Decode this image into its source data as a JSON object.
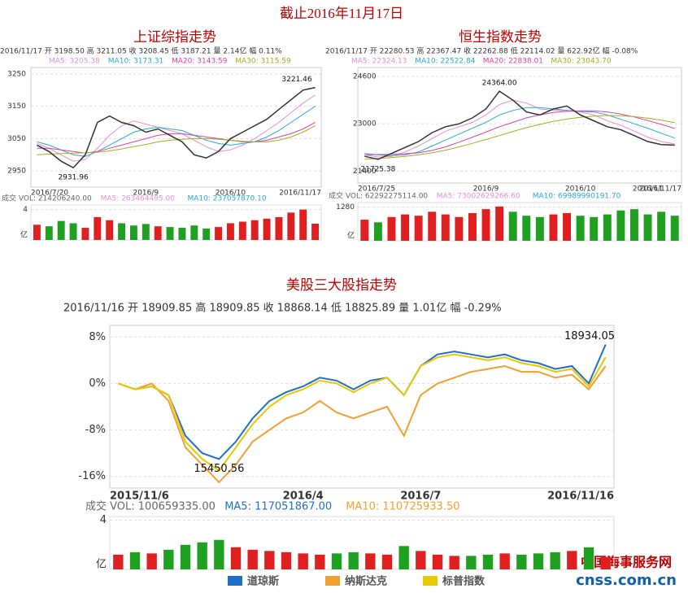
{
  "title": "截止2016年11月17日",
  "watermark": [
    "中国海事服务网",
    "cnss.com.cn"
  ],
  "chart_data": [
    {
      "type": "line",
      "title": "上证综指走势",
      "info": "2016/11/17 开 3198.50 高 3211.05 收 3208.45 低 3187.21 量 2.14亿 幅 0.11%",
      "categories": [
        "2016/7/20",
        null,
        null,
        null,
        null,
        null,
        null,
        null,
        null,
        "2016/9",
        null,
        null,
        null,
        null,
        null,
        null,
        "2016/10",
        null,
        null,
        null,
        null,
        null,
        null,
        "2016/11/17"
      ],
      "values": [
        3030,
        3010,
        2980,
        2960,
        3000,
        3100,
        3120,
        3100,
        3090,
        3070,
        3080,
        3060,
        3040,
        3000,
        2990,
        3010,
        3050,
        3070,
        3090,
        3110,
        3140,
        3170,
        3200,
        3208
      ],
      "color": "#333333",
      "series": [
        {
          "name": "MA5: 3205.38",
          "color": "#e58fd2",
          "values": [
            3035,
            3020,
            3000,
            2980,
            2985,
            3020,
            3060,
            3090,
            3105,
            3095,
            3085,
            3075,
            3065,
            3045,
            3025,
            3010,
            3015,
            3030,
            3050,
            3075,
            3100,
            3130,
            3160,
            3185
          ]
        },
        {
          "name": "MA10: 3173.31",
          "color": "#28a8d8",
          "values": [
            3040,
            3030,
            3015,
            3000,
            2995,
            3010,
            3030,
            3050,
            3070,
            3080,
            3085,
            3080,
            3075,
            3060,
            3045,
            3035,
            3030,
            3035,
            3040,
            3055,
            3075,
            3100,
            3125,
            3150
          ]
        },
        {
          "name": "MA20: 3143.59",
          "color": "#e0409c",
          "values": [
            3020,
            3020,
            3015,
            3010,
            3005,
            3010,
            3020,
            3030,
            3040,
            3050,
            3060,
            3065,
            3065,
            3060,
            3055,
            3050,
            3045,
            3040,
            3040,
            3045,
            3055,
            3065,
            3080,
            3100
          ]
        },
        {
          "name": "MA30: 3115.59",
          "color": "#a0b020",
          "values": [
            3000,
            3002,
            3004,
            3005,
            3006,
            3008,
            3012,
            3018,
            3025,
            3032,
            3040,
            3045,
            3048,
            3050,
            3050,
            3048,
            3045,
            3042,
            3040,
            3040,
            3045,
            3055,
            3070,
            3090
          ]
        }
      ],
      "ylim": [
        2900,
        3270
      ],
      "yticks": [
        2950,
        3050,
        3150,
        3250
      ],
      "annotations": [
        "3221.46",
        "2931.96"
      ],
      "volume": {
        "label": "成交 VOL: 214206240.00",
        "legend": [
          "MA5: 263464495.00",
          "MA10: 237057870.10"
        ],
        "values": [
          2.0,
          1.8,
          2.5,
          2.2,
          1.6,
          3.0,
          2.6,
          2.2,
          1.9,
          2.1,
          1.8,
          1.7,
          1.6,
          1.9,
          1.5,
          1.7,
          2.2,
          2.4,
          2.6,
          2.8,
          3.0,
          3.6,
          4.0,
          2.14
        ],
        "ylim": [
          0,
          4.6
        ],
        "yticks": [
          4
        ],
        "unit": "亿"
      }
    },
    {
      "type": "line",
      "title": "恒生指数走势",
      "info": "2016/11/17 开 22280.53 高 22367.47 收 22262.88 低 22114.02 量 622.92亿 幅 -0.08%",
      "categories": [
        "2016/7/25",
        null,
        null,
        null,
        null,
        null,
        null,
        null,
        null,
        "2016/9",
        null,
        null,
        null,
        null,
        null,
        null,
        "2016/10",
        null,
        null,
        null,
        null,
        "2016/11",
        null,
        "2016/11/17"
      ],
      "values": [
        21900,
        21800,
        22000,
        22200,
        22400,
        22700,
        22900,
        23000,
        23200,
        23500,
        24100,
        23800,
        23400,
        23300,
        23500,
        23600,
        23300,
        23100,
        22900,
        22800,
        22600,
        22400,
        22300,
        22280
      ],
      "color": "#333333",
      "series": [
        {
          "name": "MA5: 22324.13",
          "color": "#e58fd2",
          "values": [
            21950,
            21880,
            21900,
            22050,
            22250,
            22500,
            22750,
            22900,
            23050,
            23300,
            23650,
            23800,
            23700,
            23500,
            23450,
            23450,
            23400,
            23300,
            23100,
            22950,
            22750,
            22550,
            22400,
            22320
          ]
        },
        {
          "name": "MA10: 22522.84",
          "color": "#28a8d8",
          "values": [
            22000,
            21950,
            21920,
            21950,
            22050,
            22250,
            22450,
            22650,
            22850,
            23050,
            23300,
            23450,
            23550,
            23550,
            23500,
            23450,
            23420,
            23400,
            23300,
            23150,
            23000,
            22850,
            22680,
            22520
          ]
        },
        {
          "name": "MA20: 22838.01",
          "color": "#e0409c",
          "values": [
            21950,
            21960,
            21970,
            21990,
            22020,
            22100,
            22220,
            22380,
            22550,
            22720,
            22900,
            23050,
            23200,
            23300,
            23380,
            23420,
            23440,
            23440,
            23400,
            23330,
            23230,
            23110,
            22980,
            22840
          ]
        },
        {
          "name": "MA30: 23043.70",
          "color": "#a0b020",
          "values": [
            21800,
            21830,
            21860,
            21900,
            21950,
            22020,
            22110,
            22220,
            22340,
            22470,
            22600,
            22740,
            22870,
            22980,
            23080,
            23160,
            23220,
            23260,
            23280,
            23270,
            23240,
            23190,
            23120,
            23040
          ]
        }
      ],
      "ylim": [
        21000,
        24900
      ],
      "yticks": [
        21400,
        23000,
        24600
      ],
      "annotations": [
        "24364.00",
        "21725.38"
      ],
      "volume": {
        "label": "成交 VOL: 62292275114.00",
        "legend": [
          "MA5: 73002629266.60",
          "MA10: 69989990191.70"
        ],
        "values": [
          800,
          700,
          900,
          1000,
          950,
          1100,
          1000,
          900,
          1050,
          1200,
          1300,
          1100,
          950,
          900,
          1000,
          1050,
          950,
          900,
          1000,
          1150,
          1200,
          1000,
          1100,
          950
        ],
        "ylim": [
          0,
          1450
        ],
        "yticks": [
          1280
        ],
        "unit": "亿"
      }
    },
    {
      "type": "line",
      "title": "美股三大股指走势",
      "info": "2016/11/16 开 18909.85 高 18909.85 收 18868.14 低 18825.89 量 1.01亿 幅 -0.29%",
      "categories": [
        "2015/11/6",
        null,
        null,
        null,
        null,
        null,
        null,
        null,
        null,
        null,
        null,
        "2016/4",
        null,
        null,
        null,
        null,
        null,
        null,
        "2016/7",
        null,
        null,
        null,
        null,
        null,
        null,
        null,
        null,
        null,
        null,
        "2016/11/16"
      ],
      "series": [
        {
          "name": "道琼斯",
          "color": "#1f6fc5",
          "values": [
            0,
            -1,
            -0.5,
            -2,
            -9,
            -12,
            -13,
            -10,
            -6,
            -3,
            -1.5,
            -0.5,
            1,
            0.5,
            -1,
            0.5,
            1,
            -2,
            3,
            5,
            5.5,
            5,
            4.5,
            5,
            4,
            3.5,
            2.5,
            3,
            0,
            6.7
          ]
        },
        {
          "name": "纳斯达克",
          "color": "#f0a030",
          "values": [
            0,
            -1,
            0,
            -3,
            -11,
            -14,
            -17,
            -14,
            -10,
            -8,
            -6,
            -5,
            -3,
            -5,
            -6,
            -5,
            -4,
            -9,
            -2,
            0,
            1,
            2,
            2.5,
            3,
            2,
            2,
            1,
            1.5,
            -1,
            3
          ]
        },
        {
          "name": "标普指数",
          "color": "#e8c800",
          "values": [
            0,
            -1,
            -0.5,
            -2,
            -10,
            -13,
            -15,
            -11,
            -7,
            -4,
            -2,
            -1,
            0.5,
            0,
            -1.5,
            0,
            1,
            -2,
            3,
            4.5,
            5,
            4.5,
            4,
            4.5,
            3.5,
            3,
            2,
            2.5,
            -0.5,
            4.5
          ]
        }
      ],
      "ylim": [
        -18,
        10
      ],
      "yticks": [
        {
          "value": 8,
          "label": "8%"
        },
        {
          "value": 0,
          "label": "0%"
        },
        {
          "value": -8,
          "label": "-8%"
        },
        {
          "value": -16,
          "label": "-16%"
        }
      ],
      "annotations": [
        "18934.05",
        "15450.56"
      ],
      "volume": {
        "label": "成交 VOL: 100659335.00",
        "legend": [
          "MA5: 117051867.00",
          "MA10: 110725933.50"
        ],
        "values": [
          1.2,
          1.4,
          1.3,
          1.6,
          2.0,
          2.2,
          2.4,
          1.8,
          1.6,
          1.5,
          1.4,
          1.3,
          1.2,
          1.3,
          1.4,
          1.3,
          1.2,
          1.9,
          1.5,
          1.2,
          1.1,
          1.1,
          1.2,
          1.3,
          1.2,
          1.3,
          1.4,
          1.5,
          1.8,
          1.01
        ],
        "ylim": [
          0,
          4.3
        ],
        "yticks": [
          4
        ],
        "unit": "亿"
      }
    }
  ]
}
